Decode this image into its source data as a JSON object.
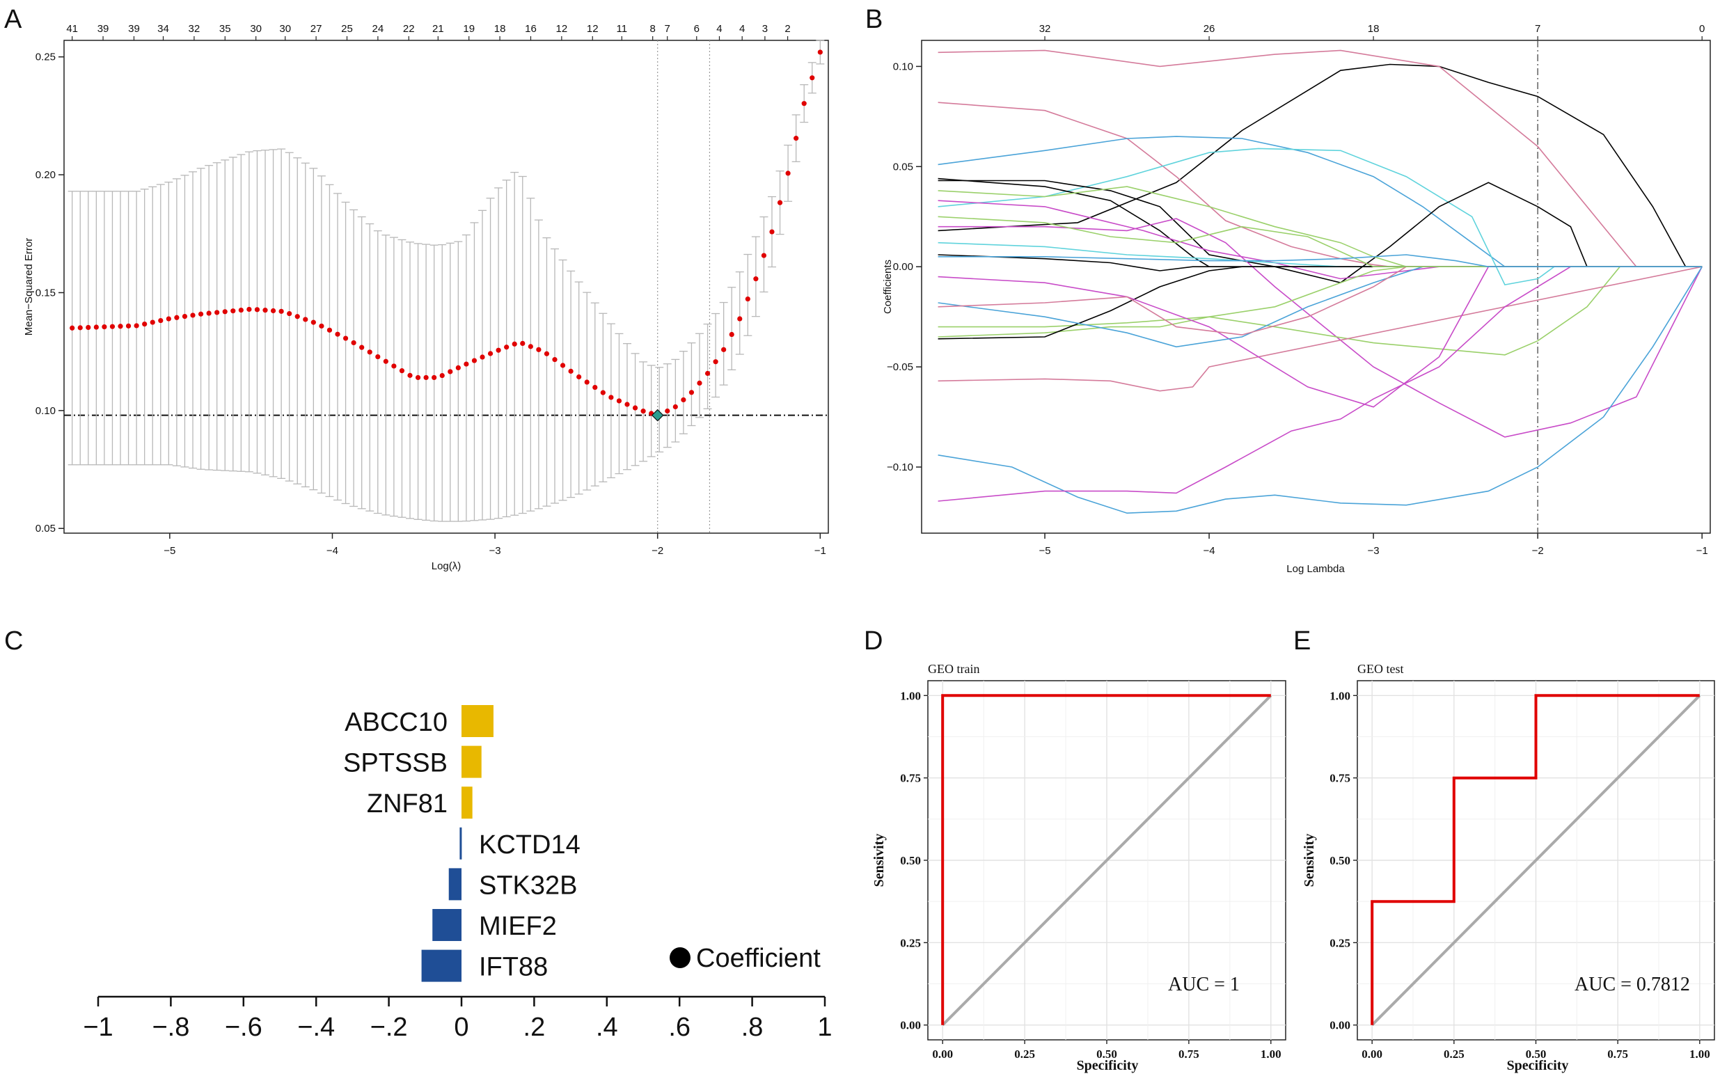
{
  "panel_labels": {
    "a": "A",
    "b": "B",
    "c": "C",
    "d": "D",
    "e": "E"
  },
  "colors": {
    "red": "#e00000",
    "gold": "#e8b800",
    "blue": "#1f4e96",
    "diamond": "#2a9d8f",
    "grey": "#aaaaaa"
  },
  "chart_data": [
    {
      "id": "A",
      "type": "scatter",
      "title": "",
      "xlabel": "Log(λ)",
      "ylabel": "Mean−Squared Error",
      "xlim": [
        -5.65,
        -0.95
      ],
      "ylim": [
        0.048,
        0.257
      ],
      "x_ticks": [
        -5,
        -4,
        -3,
        -2,
        -1
      ],
      "x_tick_labels": [
        "−5",
        "−4",
        "−3",
        "−2",
        "−1"
      ],
      "y_ticks": [
        0.05,
        0.1,
        0.15,
        0.2,
        0.25
      ],
      "y_tick_labels": [
        "0.05",
        "0.10",
        "0.15",
        "0.20",
        "0.25"
      ],
      "top_axis_labels": [
        "41",
        "39",
        "39",
        "34",
        "32",
        "35",
        "30",
        "30",
        "27",
        "25",
        "24",
        "22",
        "21",
        "19",
        "18",
        "16",
        "12",
        "12",
        "11",
        "8",
        "7",
        "6",
        "4",
        "4",
        "3",
        "2"
      ],
      "top_axis_x": [
        -5.6,
        -5.41,
        -5.22,
        -5.04,
        -4.85,
        -4.66,
        -4.47,
        -4.29,
        -4.1,
        -3.91,
        -3.72,
        -3.53,
        -3.35,
        -3.16,
        -2.97,
        -2.78,
        -2.59,
        -2.4,
        -2.22,
        -2.03,
        -1.94,
        -1.76,
        -1.62,
        -1.48,
        -1.34,
        -1.2
      ],
      "lambda_min_x": -2.0,
      "lambda_1se_x": -1.68,
      "min_mse": 0.098,
      "curve_x": [
        -5.6,
        -5.2,
        -5.0,
        -4.8,
        -4.5,
        -4.3,
        -4.1,
        -3.9,
        -3.7,
        -3.5,
        -3.35,
        -3.2,
        -3.0,
        -2.85,
        -2.7,
        -2.5,
        -2.3,
        -2.1,
        -2.0,
        -1.9,
        -1.8,
        -1.7,
        -1.6,
        -1.5,
        -1.4,
        -1.3,
        -1.2,
        -1.1,
        -1.0
      ],
      "curve_mse": [
        0.135,
        0.136,
        0.139,
        0.141,
        0.143,
        0.142,
        0.137,
        0.13,
        0.122,
        0.114,
        0.114,
        0.119,
        0.125,
        0.129,
        0.125,
        0.115,
        0.106,
        0.1,
        0.098,
        0.101,
        0.107,
        0.115,
        0.125,
        0.138,
        0.155,
        0.175,
        0.2,
        0.23,
        0.252
      ],
      "curve_upper": [
        0.193,
        0.193,
        0.197,
        0.203,
        0.21,
        0.211,
        0.202,
        0.187,
        0.175,
        0.171,
        0.17,
        0.172,
        0.193,
        0.203,
        0.175,
        0.156,
        0.138,
        0.121,
        0.118,
        0.121,
        0.128,
        0.136,
        0.145,
        0.158,
        0.173,
        0.19,
        0.212,
        0.238,
        0.257
      ],
      "curve_lower": [
        0.077,
        0.077,
        0.077,
        0.075,
        0.074,
        0.071,
        0.066,
        0.06,
        0.056,
        0.054,
        0.053,
        0.053,
        0.054,
        0.056,
        0.059,
        0.064,
        0.071,
        0.078,
        0.082,
        0.086,
        0.093,
        0.1,
        0.11,
        0.123,
        0.139,
        0.16,
        0.188,
        0.222,
        0.247
      ]
    },
    {
      "id": "B",
      "type": "line",
      "title": "",
      "xlabel": "Log Lambda",
      "ylabel": "Coefficients",
      "xlim": [
        -5.75,
        -0.95
      ],
      "ylim": [
        -0.133,
        0.113
      ],
      "x_ticks": [
        -5,
        -4,
        -3,
        -2,
        -1
      ],
      "x_tick_labels": [
        "−5",
        "−4",
        "−3",
        "−2",
        "−1"
      ],
      "y_ticks": [
        -0.1,
        -0.05,
        0.0,
        0.05,
        0.1
      ],
      "y_tick_labels": [
        "−0.10",
        "−0.05",
        "0.00",
        "0.05",
        "0.10"
      ],
      "top_axis_labels": [
        "32",
        "26",
        "18",
        "7",
        "0"
      ],
      "top_axis_x": [
        -5.0,
        -4.0,
        -3.0,
        -2.0,
        -1.0
      ],
      "vline_x": -2.0,
      "series": [
        {
          "name": "s1",
          "color": "#000000",
          "x": [
            -5.65,
            -4.8,
            -4.2,
            -3.8,
            -3.2,
            -2.9,
            -2.6,
            -2.3,
            -2.0,
            -1.6,
            -1.3,
            -1.1
          ],
          "y": [
            0.018,
            0.022,
            0.042,
            0.068,
            0.098,
            0.101,
            0.1,
            0.092,
            0.085,
            0.066,
            0.03,
            0.0
          ]
        },
        {
          "name": "s2",
          "color": "#d47a9a",
          "x": [
            -5.65,
            -5.0,
            -4.3,
            -3.6,
            -3.2,
            -2.6,
            -2.0,
            -1.6,
            -1.4
          ],
          "y": [
            0.107,
            0.108,
            0.1,
            0.106,
            0.108,
            0.1,
            0.06,
            0.02,
            0.0
          ]
        },
        {
          "name": "s3",
          "color": "#d47a9a",
          "x": [
            -5.65,
            -5.0,
            -4.5,
            -4.2,
            -3.9,
            -3.5,
            -3.2,
            -3.0,
            -2.9
          ],
          "y": [
            0.082,
            0.078,
            0.064,
            0.045,
            0.023,
            0.01,
            0.004,
            0.001,
            0.0
          ]
        },
        {
          "name": "s4",
          "color": "#4aa3d8",
          "x": [
            -5.65,
            -5.0,
            -4.5,
            -4.2,
            -3.8,
            -3.4,
            -3.0,
            -2.7,
            -2.4,
            -2.2
          ],
          "y": [
            0.051,
            0.058,
            0.064,
            0.065,
            0.064,
            0.057,
            0.045,
            0.03,
            0.012,
            0.0
          ]
        },
        {
          "name": "s5",
          "color": "#5fd3dc",
          "x": [
            -5.65,
            -5.0,
            -4.5,
            -4.0,
            -3.7,
            -3.2,
            -2.8,
            -2.4,
            -2.2,
            -2.0,
            -1.9
          ],
          "y": [
            0.03,
            0.035,
            0.045,
            0.057,
            0.059,
            0.058,
            0.045,
            0.025,
            -0.009,
            -0.006,
            0.0
          ]
        },
        {
          "name": "s6",
          "color": "#000000",
          "x": [
            -5.65,
            -5.0,
            -4.6,
            -4.3,
            -4.0,
            -3.6,
            -3.2,
            -2.9,
            -2.6,
            -2.3,
            -2.0,
            -1.8,
            -1.7
          ],
          "y": [
            0.043,
            0.043,
            0.038,
            0.03,
            0.006,
            0.0,
            -0.008,
            0.01,
            0.03,
            0.042,
            0.03,
            0.02,
            0.0
          ]
        },
        {
          "name": "s7",
          "color": "#000000",
          "x": [
            -5.65,
            -5.0,
            -4.6,
            -4.3,
            -4.1,
            -4.0
          ],
          "y": [
            0.044,
            0.04,
            0.033,
            0.018,
            0.005,
            0.0
          ]
        },
        {
          "name": "s8",
          "color": "#9ad06a",
          "x": [
            -5.65,
            -5.0,
            -4.5,
            -4.0,
            -3.6,
            -3.2,
            -3.0,
            -2.8
          ],
          "y": [
            0.038,
            0.035,
            0.04,
            0.03,
            0.02,
            0.012,
            0.005,
            0.0
          ]
        },
        {
          "name": "s9",
          "color": "#c84bc8",
          "x": [
            -5.65,
            -5.0,
            -4.5,
            -4.2,
            -3.9,
            -3.6,
            -3.3,
            -3.0,
            -2.6,
            -2.2,
            -1.8,
            -1.4,
            -1.0
          ],
          "y": [
            0.02,
            0.02,
            0.018,
            0.024,
            0.012,
            -0.01,
            -0.03,
            -0.05,
            -0.068,
            -0.085,
            -0.078,
            -0.065,
            0.0
          ]
        },
        {
          "name": "s10",
          "color": "#c84bc8",
          "x": [
            -5.65,
            -5.0,
            -4.4,
            -4.0,
            -3.6,
            -3.2,
            -2.8,
            -2.6,
            -2.5
          ],
          "y": [
            0.033,
            0.03,
            0.018,
            0.008,
            0.002,
            -0.006,
            -0.002,
            0.0,
            0.0
          ]
        },
        {
          "name": "s11",
          "color": "#9ad06a",
          "x": [
            -5.65,
            -5.0,
            -4.5,
            -4.0,
            -3.6,
            -3.0,
            -2.6,
            -2.2,
            -2.0,
            -1.7,
            -1.5
          ],
          "y": [
            -0.03,
            -0.03,
            -0.028,
            -0.025,
            -0.03,
            -0.038,
            -0.041,
            -0.044,
            -0.037,
            -0.02,
            0.0
          ]
        },
        {
          "name": "s12",
          "color": "#9ad06a",
          "x": [
            -5.65,
            -5.0,
            -4.6,
            -4.3,
            -4.0,
            -3.6,
            -3.2,
            -3.0,
            -2.8
          ],
          "y": [
            -0.035,
            -0.033,
            -0.03,
            -0.03,
            -0.025,
            -0.02,
            -0.008,
            -0.002,
            0.0
          ]
        },
        {
          "name": "s13",
          "color": "#d47a9a",
          "x": [
            -5.65,
            -5.0,
            -4.6,
            -4.3,
            -4.1,
            -4.0
          ],
          "y": [
            -0.057,
            -0.056,
            -0.057,
            -0.062,
            -0.06,
            -0.05
          ]
        },
        {
          "name": "s14",
          "color": "#000000",
          "x": [
            -5.65,
            -5.0,
            -4.6,
            -4.3,
            -4.0,
            -3.8
          ],
          "y": [
            -0.036,
            -0.035,
            -0.022,
            -0.01,
            -0.002,
            0.0
          ]
        },
        {
          "name": "s15",
          "color": "#4aa3d8",
          "x": [
            -5.65,
            -5.2,
            -4.8,
            -4.5,
            -4.2,
            -3.9,
            -3.6,
            -3.2,
            -2.8,
            -2.3,
            -2.0,
            -1.6,
            -1.3,
            -1.0
          ],
          "y": [
            -0.094,
            -0.1,
            -0.115,
            -0.123,
            -0.122,
            -0.116,
            -0.114,
            -0.118,
            -0.119,
            -0.112,
            -0.1,
            -0.075,
            -0.04,
            0.0
          ]
        },
        {
          "name": "s16",
          "color": "#c84bc8",
          "x": [
            -5.65,
            -5.0,
            -4.5,
            -4.2,
            -3.9,
            -3.5,
            -3.2,
            -3.0,
            -2.6,
            -2.2,
            -1.8,
            -1.5,
            -1.2,
            -1.0
          ],
          "y": [
            -0.117,
            -0.112,
            -0.112,
            -0.113,
            -0.1,
            -0.082,
            -0.076,
            -0.066,
            -0.05,
            -0.02,
            0.0,
            0.0,
            0.0,
            0.0
          ]
        },
        {
          "name": "s17",
          "color": "#c84bc8",
          "x": [
            -5.65,
            -5.0,
            -4.5,
            -4.0,
            -3.7,
            -3.4,
            -3.0,
            -2.6,
            -2.3
          ],
          "y": [
            -0.005,
            -0.008,
            -0.015,
            -0.03,
            -0.045,
            -0.06,
            -0.07,
            -0.045,
            0.0
          ]
        },
        {
          "name": "s18",
          "color": "#4aa3d8",
          "x": [
            -5.65,
            -5.0,
            -4.5,
            -4.2,
            -3.8,
            -3.4,
            -3.0,
            -2.7
          ],
          "y": [
            -0.018,
            -0.025,
            -0.033,
            -0.04,
            -0.035,
            -0.02,
            -0.008,
            0.0
          ]
        },
        {
          "name": "s19",
          "color": "#5fd3dc",
          "x": [
            -5.65,
            -5.0,
            -4.5,
            -4.0,
            -3.6,
            -3.2,
            -2.9
          ],
          "y": [
            0.012,
            0.01,
            0.006,
            0.004,
            0.002,
            0.0,
            0.0
          ]
        },
        {
          "name": "s20",
          "color": "#000000",
          "x": [
            -5.65,
            -5.0,
            -4.6,
            -4.3,
            -4.1
          ],
          "y": [
            0.006,
            0.004,
            0.002,
            -0.002,
            0.0
          ]
        },
        {
          "name": "s21",
          "color": "#d47a9a",
          "x": [
            -5.65,
            -5.0,
            -4.5,
            -4.2,
            -3.8,
            -3.4,
            -3.0,
            -2.8
          ],
          "y": [
            -0.02,
            -0.018,
            -0.015,
            -0.03,
            -0.034,
            -0.025,
            -0.01,
            0.0
          ]
        },
        {
          "name": "s22",
          "color": "#9ad06a",
          "x": [
            -5.65,
            -5.0,
            -4.6,
            -4.2,
            -3.8,
            -3.4,
            -3.0
          ],
          "y": [
            0.025,
            0.022,
            0.015,
            0.012,
            0.02,
            0.015,
            0.0
          ]
        },
        {
          "name": "s23",
          "color": "#4aa3d8",
          "x": [
            -5.65,
            -5.0,
            -4.5,
            -4.0,
            -3.6,
            -3.2,
            -2.8,
            -2.5,
            -2.3
          ],
          "y": [
            0.005,
            0.005,
            0.004,
            0.003,
            0.003,
            0.004,
            0.006,
            0.003,
            0.0
          ]
        }
      ]
    },
    {
      "id": "C",
      "type": "bar",
      "orientation": "horizontal",
      "categories": [
        "ABCC10",
        "SPTSSB",
        "ZNF81",
        "KCTD14",
        "STK32B",
        "MIEF2",
        "IFT88"
      ],
      "values": [
        0.088,
        0.055,
        0.03,
        -0.005,
        -0.035,
        -0.08,
        -0.11
      ],
      "xlim": [
        -1,
        1
      ],
      "x_ticks": [
        -1,
        -0.8,
        -0.6,
        -0.4,
        -0.2,
        0,
        0.2,
        0.4,
        0.6,
        0.8,
        1
      ],
      "x_tick_labels": [
        "−1",
        "−.8",
        "−.6",
        "−.4",
        "−.2",
        "0",
        ".2",
        ".4",
        ".6",
        ".8",
        "1"
      ],
      "legend": "Coefficient",
      "positive_color": "#e8b800",
      "negative_color": "#1f4e96"
    },
    {
      "id": "D",
      "type": "line",
      "title": "GEO train",
      "xlabel": "Specificity",
      "ylabel": "Sensivity",
      "xlim": [
        0,
        1
      ],
      "ylim": [
        0,
        1
      ],
      "x_ticks": [
        0,
        0.25,
        0.5,
        0.75,
        1
      ],
      "x_tick_labels": [
        "0.00",
        "0.25",
        "0.50",
        "0.75",
        "1.00"
      ],
      "y_ticks": [
        0,
        0.25,
        0.5,
        0.75,
        1
      ],
      "y_tick_labels": [
        "0.00",
        "0.25",
        "0.50",
        "0.75",
        "1.00"
      ],
      "annotation": "AUC = 1",
      "roc_x": [
        0,
        0,
        1
      ],
      "roc_y": [
        0,
        1,
        1
      ]
    },
    {
      "id": "E",
      "type": "line",
      "title": "GEO test",
      "xlabel": "Specificity",
      "ylabel": "Sensivity",
      "xlim": [
        0,
        1
      ],
      "ylim": [
        0,
        1
      ],
      "x_ticks": [
        0,
        0.25,
        0.5,
        0.75,
        1
      ],
      "x_tick_labels": [
        "0.00",
        "0.25",
        "0.50",
        "0.75",
        "1.00"
      ],
      "y_ticks": [
        0,
        0.25,
        0.5,
        0.75,
        1
      ],
      "y_tick_labels": [
        "0.00",
        "0.25",
        "0.50",
        "0.75",
        "1.00"
      ],
      "annotation": "AUC = 0.7812",
      "roc_x": [
        0,
        0,
        0.25,
        0.25,
        0.5,
        0.5,
        1
      ],
      "roc_y": [
        0,
        0.375,
        0.375,
        0.75,
        0.75,
        1,
        1
      ]
    }
  ]
}
